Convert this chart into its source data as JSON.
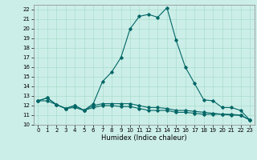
{
  "title": "",
  "xlabel": "Humidex (Indice chaleur)",
  "ylabel": "",
  "background_color": "#cceee8",
  "grid_color": "#aaddcc",
  "line_color": "#006666",
  "xlim": [
    -0.5,
    23.5
  ],
  "ylim": [
    10,
    22.5
  ],
  "xticks": [
    0,
    1,
    2,
    3,
    4,
    5,
    6,
    7,
    8,
    9,
    10,
    11,
    12,
    13,
    14,
    15,
    16,
    17,
    18,
    19,
    20,
    21,
    22,
    23
  ],
  "yticks": [
    10,
    11,
    12,
    13,
    14,
    15,
    16,
    17,
    18,
    19,
    20,
    21,
    22
  ],
  "line1_x": [
    0,
    1,
    2,
    3,
    4,
    5,
    6,
    7,
    8,
    9,
    10,
    11,
    12,
    13,
    14,
    15,
    16,
    17,
    18,
    19,
    20,
    21,
    22,
    23
  ],
  "line1_y": [
    12.5,
    12.8,
    12.1,
    11.7,
    12.0,
    11.5,
    12.2,
    14.5,
    15.5,
    17.0,
    20.0,
    21.3,
    21.5,
    21.2,
    22.2,
    18.8,
    16.0,
    14.3,
    12.6,
    12.5,
    11.8,
    11.8,
    11.5,
    10.5
  ],
  "line2_x": [
    0,
    1,
    2,
    3,
    4,
    5,
    6,
    7,
    8,
    9,
    10,
    11,
    12,
    13,
    14,
    15,
    16,
    17,
    18,
    19,
    20,
    21,
    22,
    23
  ],
  "line2_y": [
    12.5,
    12.8,
    12.1,
    11.7,
    12.0,
    11.5,
    12.0,
    12.2,
    12.2,
    12.2,
    12.2,
    12.0,
    11.8,
    11.8,
    11.7,
    11.5,
    11.5,
    11.4,
    11.3,
    11.2,
    11.1,
    11.1,
    11.0,
    10.5
  ],
  "line3_x": [
    0,
    1,
    2,
    3,
    4,
    5,
    6,
    7,
    8,
    9,
    10,
    11,
    12,
    13,
    14,
    15,
    16,
    17,
    18,
    19,
    20,
    21,
    22,
    23
  ],
  "line3_y": [
    12.5,
    12.5,
    12.1,
    11.7,
    11.8,
    11.5,
    11.8,
    12.0,
    12.0,
    11.9,
    11.9,
    11.7,
    11.5,
    11.5,
    11.5,
    11.3,
    11.3,
    11.2,
    11.1,
    11.1,
    11.1,
    11.0,
    11.0,
    10.5
  ],
  "tick_fontsize": 5,
  "xlabel_fontsize": 6,
  "marker_size": 1.8,
  "line_width": 0.8
}
